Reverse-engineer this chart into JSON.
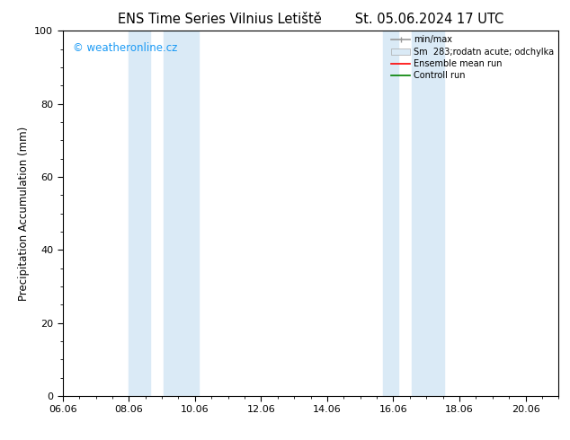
{
  "title": "ENS Time Series Vilnius Letiště        St. 05.06.2024 17 UTC",
  "ylabel": "Precipitation Accumulation (mm)",
  "ylim": [
    0,
    100
  ],
  "yticks": [
    0,
    20,
    40,
    60,
    80,
    100
  ],
  "xlim_start": 0,
  "xlim_end": 15,
  "xtick_labels": [
    "06.06",
    "08.06",
    "10.06",
    "12.06",
    "14.06",
    "16.06",
    "18.06",
    "20.06"
  ],
  "xtick_positions": [
    0,
    2,
    4,
    6,
    8,
    10,
    12,
    14
  ],
  "shaded_regions": [
    {
      "x_start": 2.0,
      "x_end": 2.65,
      "x_start2": 3.05,
      "x_end2": 4.1
    },
    {
      "x_start": 9.7,
      "x_end": 10.15,
      "x_start2": 10.55,
      "x_end2": 11.55
    }
  ],
  "shaded_color": "#daeaf6",
  "watermark_text": "© weatheronline.cz",
  "watermark_color": "#1a9af5",
  "legend_labels": [
    "min/max",
    "Sm  283;rodatn acute; odchylka",
    "Ensemble mean run",
    "Controll run"
  ],
  "legend_colors": [
    "#999999",
    "#daeaf6",
    "red",
    "green"
  ],
  "background_color": "#ffffff",
  "title_fontsize": 10.5,
  "label_fontsize": 8.5,
  "tick_fontsize": 8
}
